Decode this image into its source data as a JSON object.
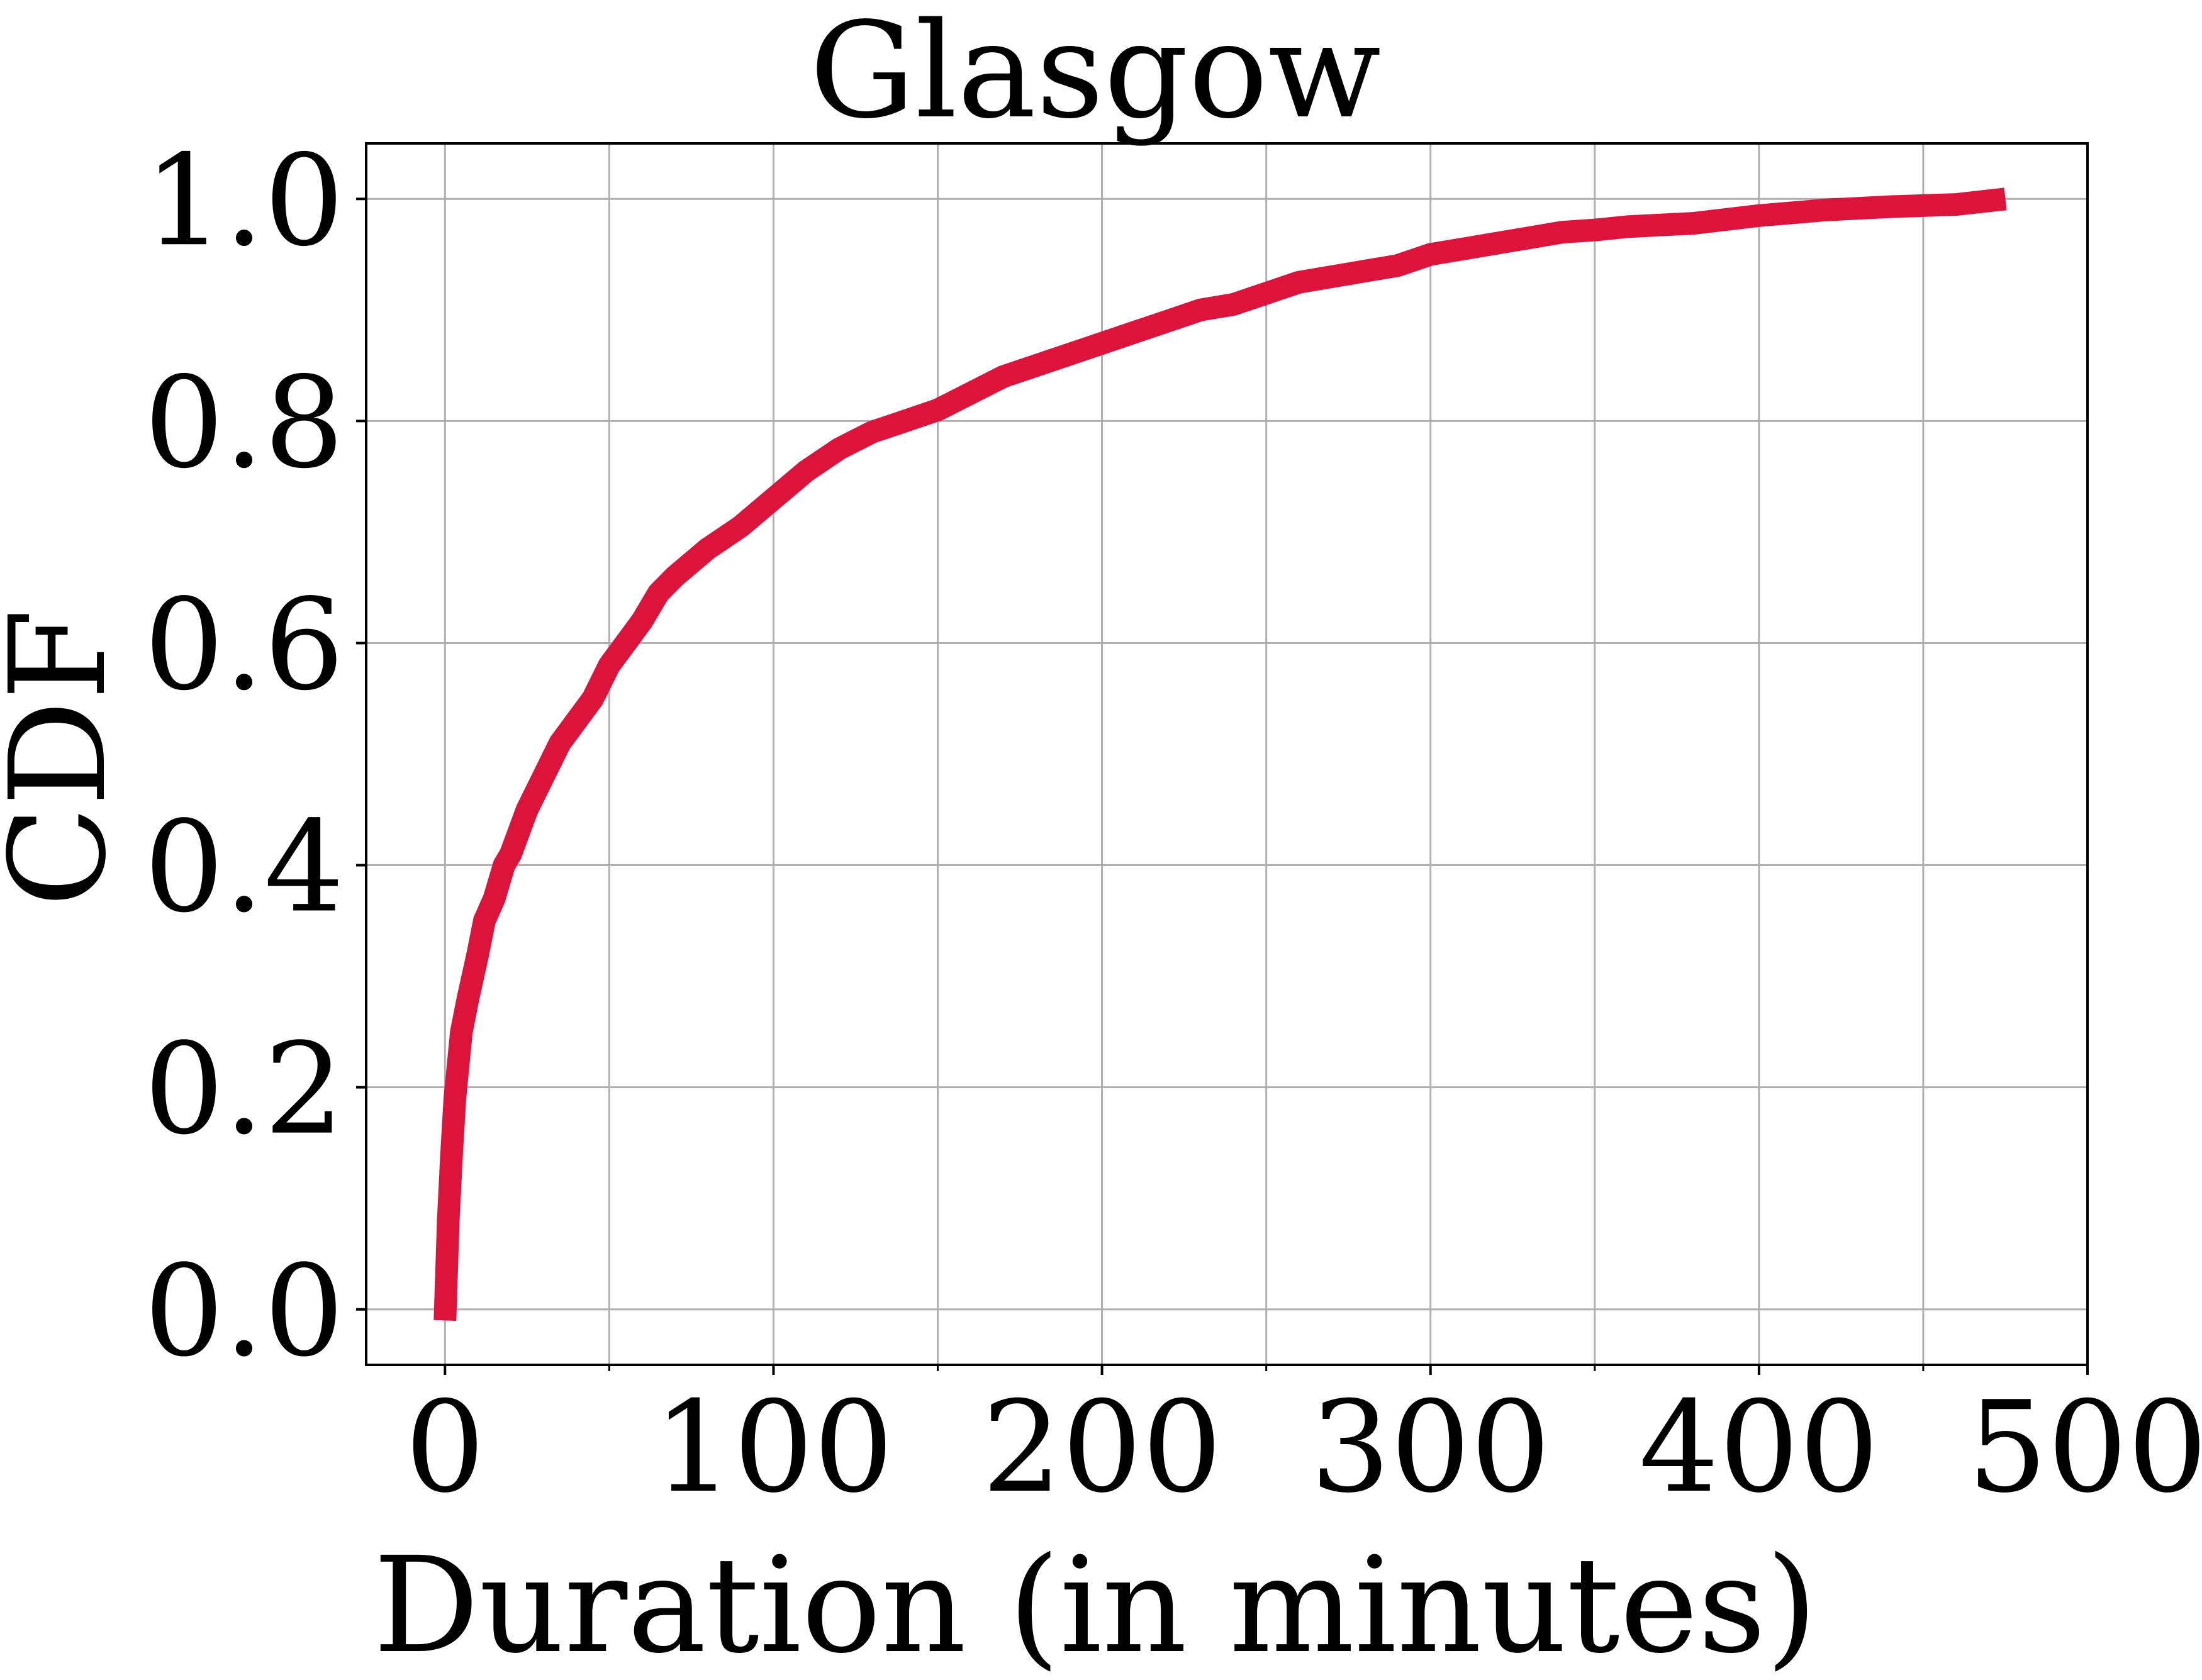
{
  "colors": {
    "line": "#dc143c",
    "grid": "#b0b0b0",
    "axes": "#000000",
    "background": "#ffffff"
  },
  "chart_data": {
    "type": "line",
    "title": "Glasgow",
    "xlabel": "Duration (in minutes)",
    "ylabel": "CDF",
    "xlim": [
      -24,
      500
    ],
    "ylim": [
      -0.05,
      1.05
    ],
    "grid": true,
    "x_ticks": [
      0,
      100,
      200,
      300,
      400,
      500
    ],
    "x_tick_labels": [
      "0",
      "100",
      "200",
      "300",
      "400",
      "500"
    ],
    "x_minor_ticks": [
      50,
      150,
      250,
      350,
      450
    ],
    "y_ticks": [
      0.0,
      0.2,
      0.4,
      0.6,
      0.8,
      1.0
    ],
    "y_tick_labels": [
      "0.0",
      "0.2",
      "0.4",
      "0.6",
      "0.8",
      "1.0"
    ],
    "series": [
      {
        "x": [
          0,
          1,
          2,
          3,
          4,
          5,
          7,
          10,
          12,
          15,
          18,
          20,
          25,
          30,
          35,
          40,
          45,
          50,
          55,
          60,
          65,
          70,
          80,
          90,
          100,
          110,
          120,
          130,
          140,
          150,
          160,
          170,
          180,
          190,
          200,
          210,
          220,
          230,
          240,
          250,
          260,
          270,
          280,
          290,
          300,
          310,
          320,
          330,
          340,
          350,
          360,
          380,
          400,
          420,
          440,
          460,
          475
        ],
        "y": [
          -0.01,
          0.08,
          0.14,
          0.19,
          0.22,
          0.25,
          0.28,
          0.32,
          0.35,
          0.37,
          0.4,
          0.41,
          0.45,
          0.48,
          0.51,
          0.53,
          0.55,
          0.58,
          0.6,
          0.62,
          0.645,
          0.66,
          0.685,
          0.705,
          0.73,
          0.755,
          0.775,
          0.79,
          0.8,
          0.81,
          0.825,
          0.84,
          0.85,
          0.86,
          0.87,
          0.88,
          0.89,
          0.9,
          0.905,
          0.915,
          0.925,
          0.93,
          0.935,
          0.94,
          0.95,
          0.955,
          0.96,
          0.965,
          0.97,
          0.972,
          0.975,
          0.978,
          0.985,
          0.99,
          0.993,
          0.995,
          1.0
        ]
      }
    ]
  }
}
